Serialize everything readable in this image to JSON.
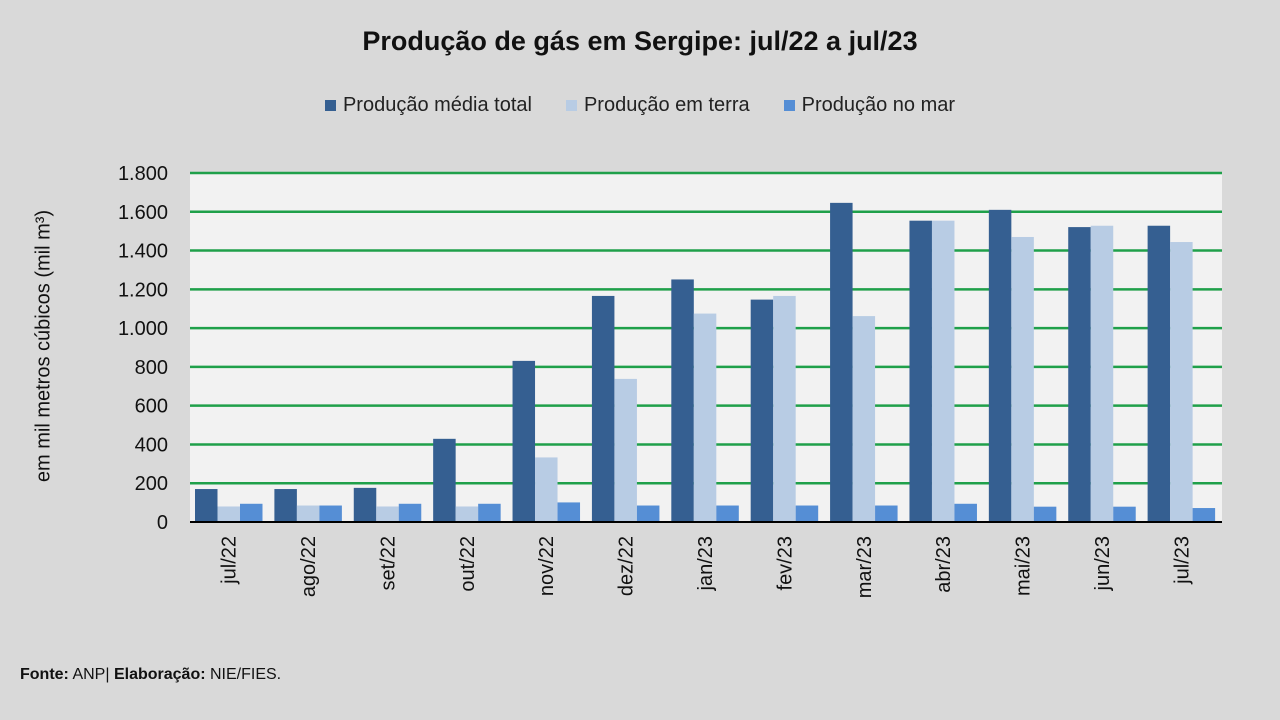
{
  "chart_data": {
    "type": "bar",
    "title": "Produção de gás em Sergipe: jul/22 a jul/23",
    "xlabel": "",
    "ylabel": "em mil metros cúbicos (mil m³)",
    "ylim": [
      0,
      1800
    ],
    "yticks": [
      0,
      200,
      400,
      600,
      800,
      1000,
      1200,
      1400,
      1600,
      1800
    ],
    "ytick_labels": [
      "0",
      "200",
      "400",
      "600",
      "800",
      "1.000",
      "1.200",
      "1.400",
      "1.600",
      "1.800"
    ],
    "grid": true,
    "legend_position": "top",
    "categories": [
      "jul/22",
      "ago/22",
      "set/22",
      "out/22",
      "nov/22",
      "dez/22",
      "jan/23",
      "fev/23",
      "mar/23",
      "abr/23",
      "mai/23",
      "jun/23",
      "jul/23"
    ],
    "series": [
      {
        "name": "Produção média total",
        "color": "#355f91",
        "values": [
          170,
          170,
          176,
          429,
          831,
          1166,
          1251,
          1147,
          1646,
          1554,
          1610,
          1521,
          1528
        ]
      },
      {
        "name": "Produção em terra",
        "color": "#b8cce4",
        "values": [
          80,
          85,
          80,
          80,
          333,
          738,
          1075,
          1166,
          1062,
          1554,
          1470,
          1528,
          1444
        ]
      },
      {
        "name": "Produção no mar",
        "color": "#558ed5",
        "values": [
          94,
          85,
          94,
          94,
          101,
          85,
          85,
          85,
          85,
          94,
          79,
          79,
          72
        ]
      }
    ]
  },
  "footer": {
    "source_label": "Fonte:",
    "source_value": "ANP|",
    "elab_label": "Elaboração:",
    "elab_value": "NIE/FIES."
  },
  "colors": {
    "grid": "#1fa04a",
    "plot_bg": "#f2f2f2",
    "page_bg": "#d9d9d9"
  }
}
